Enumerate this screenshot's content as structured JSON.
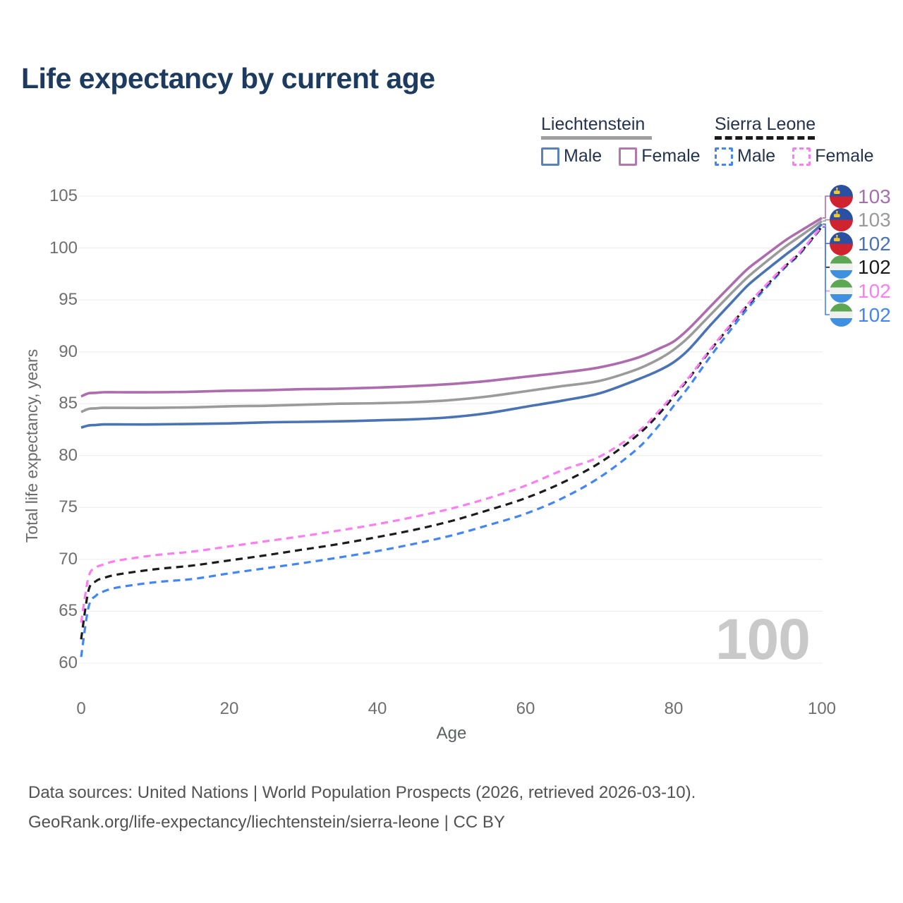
{
  "title": "Life expectancy by current age",
  "watermark": "100",
  "footer": {
    "line1": "Data sources: United Nations | World Population Prospects (2026, retrieved 2026-03-10).",
    "line2": "GeoRank.org/life-expectancy/liechtenstein/sierra-leone | CC BY"
  },
  "legend": {
    "groups": [
      {
        "name": "Liechtenstein",
        "line_style": "solid",
        "underline_color": "#9e9e9e",
        "items": [
          {
            "label": "Male",
            "color": "#5b82b8"
          },
          {
            "label": "Female",
            "color": "#b278ae"
          }
        ]
      },
      {
        "name": "Sierra Leone",
        "line_style": "dashed",
        "underline_color": "#1b1b1b",
        "items": [
          {
            "label": "Male",
            "color": "#4285f4"
          },
          {
            "label": "Female",
            "color": "#fb7ef2"
          }
        ]
      }
    ]
  },
  "chart_data": {
    "type": "line",
    "title": "Life expectancy by current age",
    "xlabel": "Age",
    "ylabel": "Total life expectancy, years",
    "xlim": [
      0,
      100
    ],
    "ylim": [
      60,
      105
    ],
    "x_ticks": [
      0,
      20,
      40,
      60,
      80,
      100
    ],
    "y_ticks": [
      60,
      65,
      70,
      75,
      80,
      85,
      90,
      95,
      100,
      105
    ],
    "grid": "horizontal-only",
    "legend_position": "top-right",
    "x": [
      0,
      1,
      2,
      3,
      5,
      10,
      15,
      20,
      25,
      30,
      35,
      40,
      45,
      50,
      55,
      60,
      65,
      70,
      75,
      78,
      80,
      82,
      85,
      88,
      90,
      92,
      95,
      97,
      100
    ],
    "series": [
      {
        "name": "Liechtenstein Male",
        "country": "Liechtenstein",
        "sex": "Male",
        "color": "#4a73b4",
        "dashed": false,
        "values": [
          82.7,
          82.9,
          82.95,
          83.0,
          83.0,
          83.0,
          83.05,
          83.1,
          83.2,
          83.25,
          83.3,
          83.4,
          83.5,
          83.7,
          84.1,
          84.7,
          85.3,
          86.0,
          87.3,
          88.2,
          89.0,
          90.2,
          92.6,
          94.9,
          96.4,
          97.6,
          99.3,
          100.4,
          102.3
        ]
      },
      {
        "name": "Liechtenstein Both sexes",
        "country": "Liechtenstein",
        "sex": "Both",
        "color": "#9b9b9b",
        "dashed": false,
        "values": [
          84.2,
          84.5,
          84.55,
          84.6,
          84.6,
          84.6,
          84.65,
          84.75,
          84.8,
          84.9,
          85.0,
          85.05,
          85.15,
          85.35,
          85.7,
          86.2,
          86.7,
          87.2,
          88.3,
          89.3,
          90.2,
          91.4,
          93.6,
          95.8,
          97.2,
          98.4,
          100.1,
          101.1,
          102.6
        ]
      },
      {
        "name": "Liechtenstein Female",
        "country": "Liechtenstein",
        "sex": "Female",
        "color": "#ad6cae",
        "dashed": false,
        "values": [
          85.7,
          86.0,
          86.05,
          86.1,
          86.1,
          86.1,
          86.15,
          86.25,
          86.3,
          86.4,
          86.45,
          86.55,
          86.7,
          86.9,
          87.2,
          87.6,
          88.0,
          88.5,
          89.4,
          90.3,
          91.0,
          92.2,
          94.4,
          96.6,
          98.0,
          99.1,
          100.7,
          101.6,
          102.9
        ]
      },
      {
        "name": "Sierra Leone Male",
        "country": "Sierra Leone",
        "sex": "Male",
        "color": "#4285f4",
        "dashed": true,
        "values": [
          60.6,
          65.4,
          66.5,
          66.9,
          67.3,
          67.8,
          68.1,
          68.65,
          69.15,
          69.65,
          70.2,
          70.8,
          71.5,
          72.3,
          73.3,
          74.4,
          75.9,
          77.9,
          80.6,
          82.9,
          84.8,
          86.6,
          89.6,
          92.4,
          94.2,
          95.8,
          98.1,
          99.4,
          102.0
        ]
      },
      {
        "name": "Sierra Leone Both sexes",
        "country": "Sierra Leone",
        "sex": "Both",
        "color": "#1c1c1c",
        "dashed": true,
        "values": [
          62.3,
          67.0,
          67.9,
          68.2,
          68.55,
          69.05,
          69.4,
          69.9,
          70.4,
          70.95,
          71.5,
          72.15,
          72.85,
          73.7,
          74.75,
          75.9,
          77.4,
          79.3,
          81.9,
          84.0,
          85.7,
          87.4,
          90.2,
          92.8,
          94.5,
          96.0,
          98.2,
          99.5,
          102.05
        ]
      },
      {
        "name": "Sierra Leone Female",
        "country": "Sierra Leone",
        "sex": "Female",
        "color": "#fb7ef2",
        "dashed": true,
        "values": [
          63.9,
          68.3,
          69.2,
          69.5,
          69.9,
          70.4,
          70.75,
          71.25,
          71.75,
          72.25,
          72.8,
          73.4,
          74.1,
          74.9,
          75.9,
          77.1,
          78.6,
          79.9,
          82.2,
          84.3,
          85.9,
          87.5,
          90.3,
          92.9,
          94.6,
          96.1,
          98.3,
          99.6,
          102.1
        ]
      }
    ],
    "end_labels": [
      {
        "value": "103",
        "series": "Liechtenstein Female",
        "color": "#a76fae",
        "flag": "liechtenstein"
      },
      {
        "value": "103",
        "series": "Liechtenstein Both sexes",
        "color": "#9a9a9a",
        "flag": "liechtenstein"
      },
      {
        "value": "102",
        "series": "Liechtenstein Male",
        "color": "#4a73b4",
        "flag": "liechtenstein"
      },
      {
        "value": "102",
        "series": "Sierra Leone Both sexes",
        "color": "#1a1a1a",
        "flag": "sierra-leone"
      },
      {
        "value": "102",
        "series": "Sierra Leone Female",
        "color": "#fb7ef2",
        "flag": "sierra-leone"
      },
      {
        "value": "102",
        "series": "Sierra Leone Male",
        "color": "#4285f4",
        "flag": "sierra-leone"
      }
    ]
  }
}
